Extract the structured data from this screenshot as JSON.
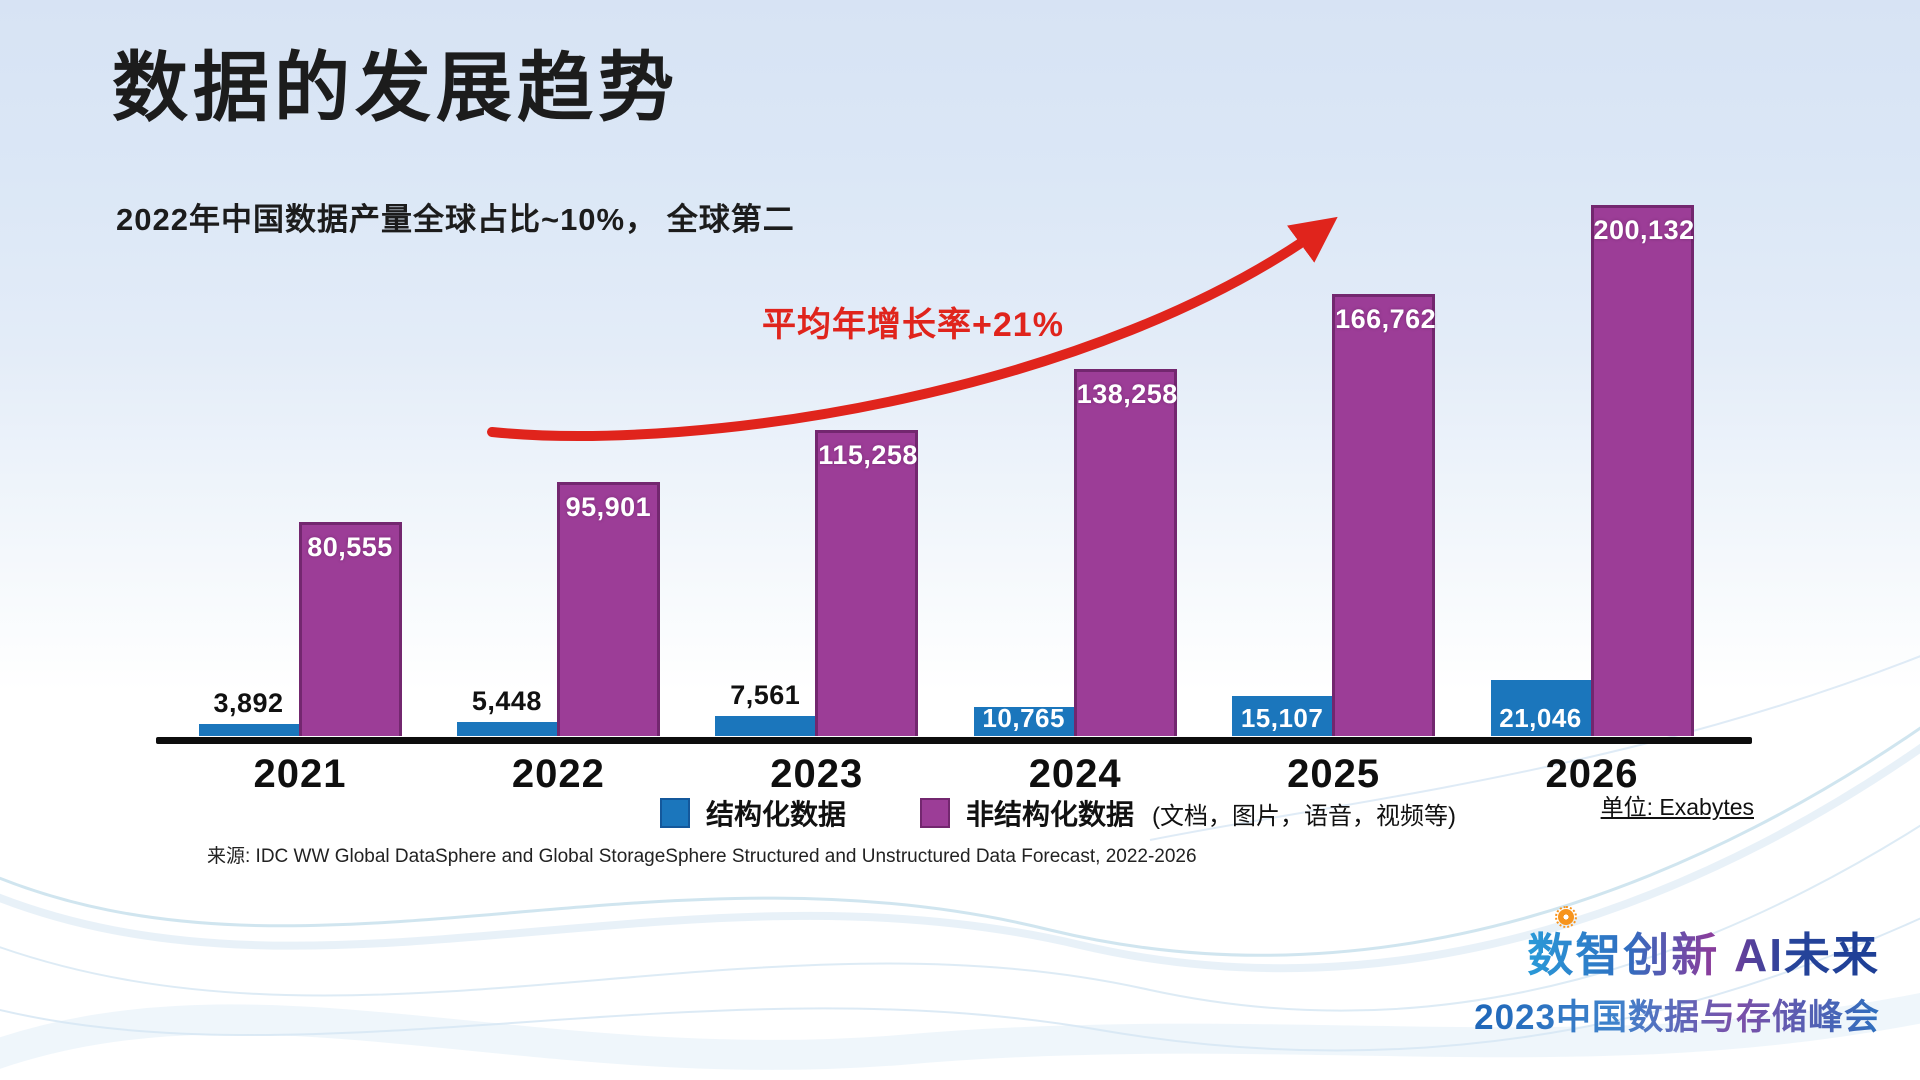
{
  "slide": {
    "title": "数据的发展趋势",
    "subtitle": "2022年中国数据产量全球占比~10%， 全球第二",
    "growth_annotation": "平均年增长率+21%",
    "unit_label": "单位: Exabytes",
    "source": "来源: IDC WW Global DataSphere and Global StorageSphere Structured and Unstructured Data Forecast, 2022-2026",
    "footer_logo": {
      "line1": "数智创新 AI未来",
      "line2": "2023中国数据与存储峰会"
    }
  },
  "legend": {
    "structured_label": "结构化数据",
    "unstructured_label": "非结构化数据",
    "unstructured_note": "(文档，图片，语音，视频等)"
  },
  "icons": {
    "gear_badge": "gear",
    "growth_arrow": "curved-up-right-arrow"
  },
  "colors": {
    "structured": "#1b76bc",
    "unstructured": "#9c3d97",
    "unstructured_border": "#73276f",
    "arrow_red": "#e0241c",
    "axis": "#0d0d0d",
    "background_top": "#d7e3f4"
  },
  "chart_data": {
    "type": "bar",
    "categories": [
      "2021",
      "2022",
      "2023",
      "2024",
      "2025",
      "2026"
    ],
    "series": [
      {
        "name": "结构化数据",
        "color": "#1b76bc",
        "values": [
          3892,
          5448,
          7561,
          10765,
          15107,
          21046
        ]
      },
      {
        "name": "非结构化数据",
        "color": "#9c3d97",
        "values": [
          80555,
          95901,
          115258,
          138258,
          166762,
          200132
        ]
      }
    ],
    "title": "数据的发展趋势",
    "xlabel": "",
    "ylabel": "",
    "unit": "Exabytes",
    "ylim": [
      0,
      200132
    ],
    "grid": false,
    "value_labels": true,
    "legend_position": "bottom",
    "annotation": "平均年增长率+21%"
  }
}
